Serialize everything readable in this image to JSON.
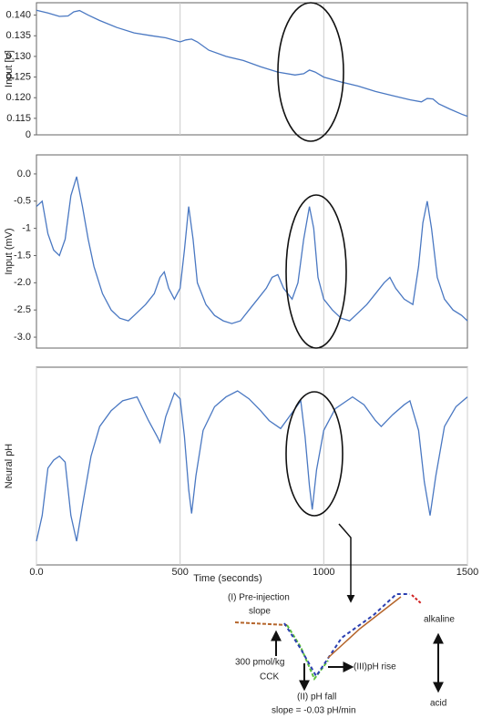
{
  "chart_data": [
    {
      "type": "line",
      "ylabel": "Input [V]",
      "color": "#4a78c2",
      "grid": true,
      "xtick_labels": false,
      "xlim": [
        0,
        1500
      ],
      "xticks": [
        500,
        1000
      ],
      "ylim": [
        0.111,
        0.143
      ],
      "yticks": [
        {
          "value": 0.14,
          "label": "0.140"
        },
        0.135,
        {
          "value": 0.13,
          "label": "0.130"
        },
        0.125,
        {
          "value": 0.12,
          "label": "0.120"
        },
        0.115,
        {
          "value": 0.111,
          "label": "0"
        }
      ],
      "x": [
        0,
        40,
        80,
        110,
        130,
        150,
        180,
        220,
        280,
        340,
        400,
        450,
        500,
        520,
        540,
        560,
        600,
        660,
        720,
        780,
        840,
        900,
        930,
        950,
        970,
        1000,
        1060,
        1120,
        1180,
        1240,
        1300,
        1340,
        1360,
        1380,
        1400,
        1440,
        1480,
        1500
      ],
      "values": [
        0.1412,
        0.1405,
        0.1397,
        0.1398,
        0.1408,
        0.1411,
        0.14,
        0.1387,
        0.137,
        0.1357,
        0.135,
        0.1345,
        0.1335,
        0.134,
        0.1342,
        0.1335,
        0.1315,
        0.13,
        0.129,
        0.1275,
        0.1262,
        0.1255,
        0.1258,
        0.1267,
        0.1262,
        0.125,
        0.1238,
        0.1228,
        0.1215,
        0.1205,
        0.1195,
        0.119,
        0.1198,
        0.1197,
        0.1185,
        0.1172,
        0.116,
        0.1155
      ]
    },
    {
      "type": "line",
      "ylabel": "Input (mV)",
      "color": "#4a78c2",
      "grid": true,
      "xtick_labels": false,
      "xlim": [
        0,
        1500
      ],
      "xticks": [
        500,
        1000
      ],
      "ylim": [
        -3.2,
        0.35
      ],
      "yticks": [
        {
          "value": 0,
          "label": "0.0"
        },
        -0.5,
        -1,
        -1.5,
        {
          "value": -2,
          "label": "-2.0"
        },
        -2.5,
        {
          "value": -3,
          "label": "-3.0"
        }
      ],
      "x": [
        0,
        20,
        40,
        60,
        80,
        100,
        120,
        140,
        160,
        180,
        200,
        230,
        260,
        290,
        320,
        350,
        380,
        410,
        430,
        445,
        460,
        480,
        500,
        515,
        530,
        545,
        560,
        590,
        620,
        650,
        680,
        710,
        740,
        770,
        800,
        820,
        840,
        860,
        890,
        910,
        930,
        950,
        965,
        980,
        1000,
        1030,
        1060,
        1090,
        1120,
        1150,
        1180,
        1210,
        1230,
        1250,
        1280,
        1310,
        1330,
        1345,
        1360,
        1375,
        1395,
        1420,
        1450,
        1480,
        1500
      ],
      "values": [
        -0.6,
        -0.5,
        -1.1,
        -1.4,
        -1.5,
        -1.2,
        -0.4,
        -0.05,
        -0.6,
        -1.2,
        -1.7,
        -2.2,
        -2.5,
        -2.65,
        -2.7,
        -2.55,
        -2.4,
        -2.2,
        -1.9,
        -1.8,
        -2.1,
        -2.3,
        -2.1,
        -1.4,
        -0.6,
        -1.2,
        -2.0,
        -2.4,
        -2.6,
        -2.7,
        -2.75,
        -2.7,
        -2.5,
        -2.3,
        -2.1,
        -1.9,
        -1.85,
        -2.1,
        -2.3,
        -2.0,
        -1.2,
        -0.6,
        -1.0,
        -1.9,
        -2.3,
        -2.5,
        -2.65,
        -2.7,
        -2.55,
        -2.4,
        -2.2,
        -2.0,
        -1.9,
        -2.1,
        -2.3,
        -2.4,
        -1.7,
        -0.9,
        -0.5,
        -1.0,
        -1.9,
        -2.3,
        -2.5,
        -2.6,
        -2.7
      ]
    },
    {
      "type": "line",
      "ylabel": "Neural pH",
      "xlabel": "Time (seconds)",
      "color": "#4a78c2",
      "grid": true,
      "xtick_labels": true,
      "xlim": [
        0,
        1500
      ],
      "xticks": [
        {
          "value": 0,
          "label": "0.0"
        },
        500,
        1000,
        1500
      ],
      "ylim": [
        0,
        10
      ],
      "x": [
        0,
        20,
        40,
        60,
        80,
        100,
        120,
        140,
        160,
        190,
        220,
        260,
        300,
        350,
        390,
        420,
        430,
        450,
        480,
        500,
        515,
        530,
        540,
        555,
        580,
        620,
        660,
        700,
        740,
        780,
        810,
        850,
        880,
        920,
        935,
        950,
        960,
        975,
        1000,
        1040,
        1080,
        1100,
        1140,
        1180,
        1200,
        1240,
        1280,
        1300,
        1330,
        1350,
        1370,
        1390,
        1420,
        1460,
        1500
      ],
      "values": [
        1.2,
        2.5,
        4.9,
        5.3,
        5.5,
        5.2,
        2.5,
        1.2,
        3.0,
        5.5,
        7.0,
        7.8,
        8.3,
        8.5,
        7.3,
        6.5,
        6.2,
        7.5,
        8.7,
        8.4,
        6.5,
        3.8,
        2.6,
        4.5,
        6.8,
        8.0,
        8.5,
        8.8,
        8.4,
        7.8,
        7.3,
        6.9,
        7.5,
        8.3,
        6.5,
        4.0,
        2.8,
        4.8,
        6.8,
        7.9,
        8.3,
        8.5,
        8.1,
        7.3,
        7.0,
        7.6,
        8.1,
        8.3,
        6.8,
        4.2,
        2.5,
        4.5,
        7.0,
        8.0,
        8.5
      ]
    }
  ],
  "inset": {
    "pre_injection": "(I) Pre-injection",
    "pre_injection_2": "slope",
    "dose": "300 pmol/kg",
    "dose_2": "CCK",
    "fall": "(II) pH fall",
    "fall_slope": "slope = -0.03 pH/min",
    "rise": "(III)pH rise",
    "alkaline": "alkaline",
    "acid": "acid"
  }
}
